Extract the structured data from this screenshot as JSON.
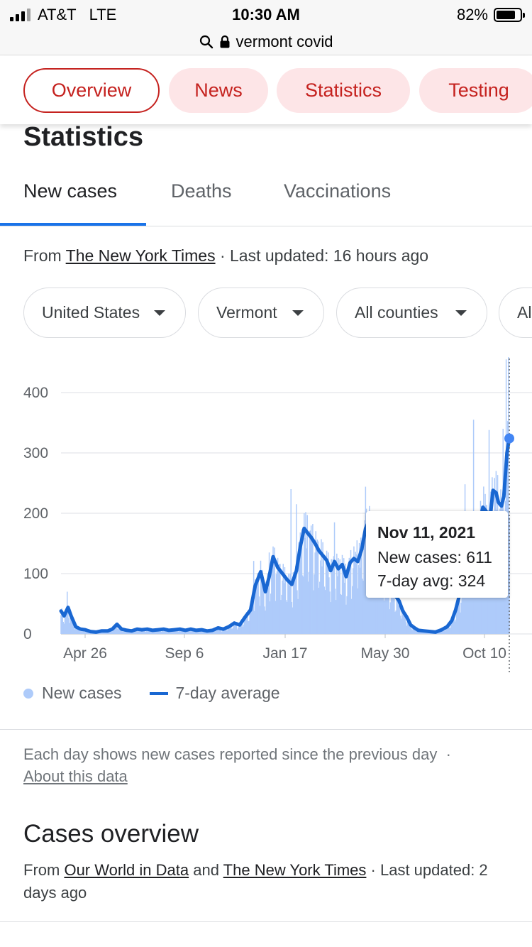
{
  "status_bar": {
    "carrier": "AT&T",
    "network": "LTE",
    "time": "10:30 AM",
    "battery": "82%",
    "battery_level": 0.82
  },
  "url_bar": {
    "query": "vermont covid",
    "icons": [
      "search-icon",
      "lock-icon"
    ]
  },
  "chips": [
    "Overview",
    "News",
    "Statistics",
    "Testing"
  ],
  "page_title": "Statistics",
  "tabs": [
    "New cases",
    "Deaths",
    "Vaccinations"
  ],
  "source": {
    "prefix": "From",
    "name": "The New York Times",
    "updated": "· Last updated: 16 hours ago"
  },
  "filters": [
    "United States",
    "Vermont",
    "All counties",
    "Al"
  ],
  "chart_data": {
    "type": "bar",
    "y_ticks": [
      "0",
      "100",
      "200",
      "300",
      "400"
    ],
    "ylim": [
      0,
      450
    ],
    "x_ticks": [
      "Apr 26",
      "Sep 6",
      "Jan 17",
      "May 30",
      "Oct 10"
    ],
    "x_range": [
      "2020-03-05",
      "2021-11-11"
    ],
    "series": [
      {
        "name": "7-day average",
        "type": "line",
        "points": [
          [
            0,
            38
          ],
          [
            4,
            30
          ],
          [
            9,
            44
          ],
          [
            13,
            30
          ],
          [
            19,
            12
          ],
          [
            25,
            8
          ],
          [
            31,
            7
          ],
          [
            38,
            4
          ],
          [
            45,
            3
          ],
          [
            52,
            5
          ],
          [
            60,
            5
          ],
          [
            66,
            8
          ],
          [
            72,
            16
          ],
          [
            78,
            8
          ],
          [
            85,
            6
          ],
          [
            91,
            5
          ],
          [
            98,
            8
          ],
          [
            104,
            7
          ],
          [
            111,
            8
          ],
          [
            118,
            6
          ],
          [
            125,
            7
          ],
          [
            132,
            8
          ],
          [
            139,
            6
          ],
          [
            146,
            7
          ],
          [
            153,
            8
          ],
          [
            160,
            6
          ],
          [
            167,
            8
          ],
          [
            174,
            6
          ],
          [
            181,
            7
          ],
          [
            188,
            5
          ],
          [
            195,
            6
          ],
          [
            202,
            10
          ],
          [
            209,
            8
          ],
          [
            216,
            12
          ],
          [
            223,
            18
          ],
          [
            230,
            15
          ],
          [
            237,
            28
          ],
          [
            244,
            40
          ],
          [
            250,
            80
          ],
          [
            257,
            103
          ],
          [
            263,
            70
          ],
          [
            268,
            95
          ],
          [
            273,
            128
          ],
          [
            279,
            110
          ],
          [
            285,
            100
          ],
          [
            291,
            90
          ],
          [
            297,
            82
          ],
          [
            303,
            105
          ],
          [
            308,
            145
          ],
          [
            313,
            175
          ],
          [
            317,
            168
          ],
          [
            322,
            160
          ],
          [
            327,
            150
          ],
          [
            332,
            138
          ],
          [
            337,
            130
          ],
          [
            342,
            122
          ],
          [
            347,
            105
          ],
          [
            352,
            120
          ],
          [
            357,
            108
          ],
          [
            362,
            115
          ],
          [
            367,
            95
          ],
          [
            372,
            118
          ],
          [
            377,
            125
          ],
          [
            382,
            120
          ],
          [
            387,
            140
          ],
          [
            392,
            175
          ],
          [
            396,
            186
          ],
          [
            400,
            176
          ],
          [
            405,
            155
          ],
          [
            410,
            130
          ],
          [
            415,
            115
          ],
          [
            420,
            92
          ],
          [
            425,
            78
          ],
          [
            430,
            64
          ],
          [
            435,
            55
          ],
          [
            440,
            38
          ],
          [
            445,
            28
          ],
          [
            450,
            15
          ],
          [
            455,
            10
          ],
          [
            460,
            6
          ],
          [
            468,
            5
          ],
          [
            475,
            4
          ],
          [
            482,
            3
          ],
          [
            490,
            7
          ],
          [
            497,
            12
          ],
          [
            503,
            22
          ],
          [
            508,
            40
          ],
          [
            512,
            60
          ],
          [
            517,
            95
          ],
          [
            522,
            150
          ],
          [
            527,
            170
          ],
          [
            532,
            162
          ],
          [
            538,
            180
          ],
          [
            543,
            210
          ],
          [
            548,
            202
          ],
          [
            553,
            200
          ],
          [
            556,
            238
          ],
          [
            560,
            234
          ],
          [
            563,
            218
          ],
          [
            567,
            212
          ],
          [
            570,
            228
          ],
          [
            574,
            300
          ],
          [
            577,
            324
          ]
        ]
      },
      {
        "name": "New cases",
        "type": "bar",
        "note": "daily bars follow the 7-day average with spikes",
        "spikes": [
          [
            8,
            70
          ],
          [
            248,
            220
          ],
          [
            268,
            135
          ],
          [
            277,
            180
          ],
          [
            296,
            240
          ],
          [
            303,
            215
          ],
          [
            313,
            200
          ],
          [
            352,
            185
          ],
          [
            381,
            282
          ],
          [
            392,
            244
          ],
          [
            395,
            240
          ],
          [
            520,
            248
          ],
          [
            531,
            355
          ],
          [
            551,
            338
          ],
          [
            557,
            295
          ],
          [
            563,
            332
          ],
          [
            569,
            340
          ],
          [
            573,
            455
          ],
          [
            576,
            611
          ]
        ]
      }
    ],
    "tooltip": {
      "date": "Nov 11, 2021",
      "new_cases": 611,
      "avg": 324
    },
    "colors": {
      "bars": "#aecbfa",
      "line": "#1967d2",
      "dot": "#4285f4",
      "grid": "#e8eaed"
    }
  },
  "tooltip": {
    "date": "Nov 11, 2021",
    "new_cases": "New cases: 611",
    "avg": "7-day avg: 324"
  },
  "legend": {
    "bars": "New cases",
    "line": "7-day average"
  },
  "note": {
    "text": "Each day shows new cases reported since the previous day",
    "separator": "·",
    "link": "About this data"
  },
  "overview": {
    "title": "Cases overview",
    "prefix": "From",
    "source1": "Our World in Data",
    "and": "and",
    "source2": "The New York Times",
    "updated": "· Last updated: 2 days ago"
  }
}
